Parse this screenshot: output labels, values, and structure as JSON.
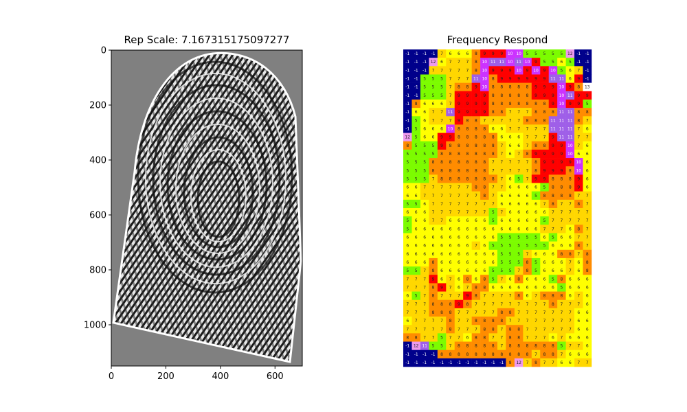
{
  "chart_data": [
    {
      "type": "image",
      "title": "Rep Scale: 7.167315175097277",
      "xlabel": "",
      "ylabel": "",
      "xlim": [
        0,
        700
      ],
      "ylim": [
        1150,
        0
      ],
      "x_ticks": [
        0,
        200,
        400,
        600
      ],
      "y_ticks": [
        0,
        200,
        400,
        600,
        800,
        1000
      ],
      "image_content": "enhanced grayscale fingerprint ridge image on gray background"
    },
    {
      "type": "heatmap",
      "title": "Frequency Respond",
      "xlabel": "",
      "ylabel": "",
      "axes_visible": false,
      "colors": {
        "-1": "#00008b",
        "5": "#7cfc00",
        "6": "#ffff00",
        "7": "#ffd700",
        "8": "#ff8c00",
        "9": "#ff0000",
        "10": "#cc33ff",
        "11": "#9f5fe8",
        "12": "#ee99ee",
        "13": "#ffffff"
      },
      "rows": [
        [
          -1,
          -1,
          -1,
          -1,
          7,
          6,
          6,
          6,
          8,
          9,
          9,
          9,
          10,
          10,
          5,
          5,
          5,
          5,
          5,
          12,
          -1,
          -1
        ],
        [
          -1,
          -1,
          -1,
          12,
          6,
          7,
          7,
          7,
          8,
          10,
          11,
          11,
          10,
          11,
          10,
          9,
          5,
          5,
          6,
          5,
          -1,
          -1
        ],
        [
          -1,
          -1,
          -1,
          7,
          7,
          7,
          7,
          7,
          8,
          10,
          9,
          9,
          9,
          10,
          9,
          10,
          9,
          10,
          5,
          6,
          7,
          -1
        ],
        [
          -1,
          -1,
          5,
          5,
          5,
          7,
          7,
          7,
          11,
          10,
          8,
          9,
          9,
          9,
          9,
          9,
          9,
          11,
          11,
          6,
          9,
          -1
        ],
        [
          -1,
          -1,
          5,
          5,
          5,
          7,
          8,
          8,
          9,
          10,
          8,
          8,
          8,
          8,
          8,
          9,
          9,
          9,
          10,
          9,
          8,
          13
        ],
        [
          -1,
          -1,
          5,
          5,
          5,
          7,
          9,
          9,
          9,
          9,
          8,
          8,
          8,
          8,
          8,
          9,
          9,
          9,
          10,
          11,
          9,
          9
        ],
        [
          -1,
          8,
          6,
          6,
          6,
          7,
          9,
          9,
          9,
          9,
          8,
          8,
          8,
          8,
          8,
          8,
          8,
          9,
          10,
          9,
          9,
          5
        ],
        [
          -1,
          6,
          6,
          7,
          7,
          11,
          9,
          9,
          9,
          9,
          8,
          8,
          7,
          7,
          7,
          8,
          8,
          8,
          11,
          11,
          8,
          8
        ],
        [
          -1,
          5,
          6,
          7,
          7,
          7,
          9,
          8,
          8,
          7,
          7,
          7,
          7,
          7,
          8,
          8,
          8,
          11,
          11,
          11,
          8,
          7
        ],
        [
          -1,
          5,
          6,
          6,
          6,
          10,
          8,
          8,
          8,
          8,
          6,
          6,
          7,
          7,
          7,
          7,
          7,
          11,
          11,
          11,
          7,
          6
        ],
        [
          12,
          5,
          6,
          6,
          9,
          9,
          8,
          8,
          8,
          8,
          8,
          6,
          6,
          6,
          7,
          7,
          7,
          9,
          11,
          11,
          7,
          7
        ],
        [
          8,
          5,
          5,
          5,
          9,
          8,
          8,
          8,
          8,
          8,
          8,
          7,
          6,
          6,
          7,
          8,
          8,
          9,
          9,
          10,
          7,
          6
        ],
        [
          5,
          5,
          5,
          5,
          8,
          8,
          8,
          8,
          8,
          8,
          8,
          7,
          6,
          7,
          8,
          9,
          9,
          9,
          9,
          10,
          6,
          6
        ],
        [
          5,
          5,
          5,
          8,
          8,
          8,
          8,
          8,
          8,
          8,
          7,
          7,
          7,
          7,
          7,
          8,
          9,
          9,
          9,
          9,
          10,
          6
        ],
        [
          5,
          5,
          5,
          8,
          8,
          8,
          8,
          8,
          8,
          8,
          7,
          7,
          7,
          7,
          7,
          8,
          9,
          9,
          9,
          8,
          10,
          6
        ],
        [
          5,
          5,
          5,
          7,
          8,
          8,
          8,
          8,
          8,
          8,
          8,
          7,
          6,
          5,
          7,
          9,
          9,
          8,
          8,
          8,
          9,
          6
        ],
        [
          6,
          6,
          7,
          7,
          7,
          7,
          7,
          7,
          8,
          8,
          7,
          7,
          6,
          6,
          6,
          6,
          5,
          8,
          8,
          8,
          9,
          6
        ],
        [
          6,
          6,
          7,
          7,
          7,
          7,
          7,
          7,
          7,
          8,
          7,
          6,
          6,
          6,
          6,
          5,
          8,
          8,
          8,
          8,
          7,
          7
        ],
        [
          5,
          5,
          6,
          7,
          7,
          7,
          7,
          7,
          7,
          7,
          7,
          6,
          6,
          6,
          6,
          6,
          7,
          8,
          7,
          7,
          8,
          7
        ],
        [
          6,
          6,
          6,
          7,
          7,
          7,
          7,
          7,
          7,
          7,
          5,
          7,
          6,
          6,
          6,
          6,
          6,
          7,
          7,
          7,
          7,
          7
        ],
        [
          5,
          6,
          6,
          7,
          7,
          6,
          6,
          6,
          6,
          6,
          5,
          6,
          6,
          6,
          6,
          6,
          5,
          7,
          7,
          7,
          7,
          7
        ],
        [
          5,
          6,
          6,
          6,
          6,
          6,
          6,
          6,
          6,
          6,
          6,
          6,
          6,
          6,
          6,
          6,
          7,
          7,
          7,
          6,
          8,
          7
        ],
        [
          6,
          6,
          6,
          6,
          6,
          6,
          6,
          6,
          6,
          6,
          6,
          5,
          5,
          5,
          5,
          5,
          6,
          5,
          6,
          6,
          7,
          7
        ],
        [
          6,
          6,
          6,
          6,
          6,
          6,
          6,
          6,
          7,
          6,
          5,
          5,
          5,
          5,
          5,
          5,
          5,
          6,
          6,
          6,
          8,
          7
        ],
        [
          6,
          6,
          6,
          6,
          6,
          6,
          6,
          6,
          6,
          6,
          6,
          5,
          5,
          5,
          7,
          6,
          6,
          6,
          8,
          8,
          7,
          8
        ],
        [
          6,
          6,
          6,
          8,
          6,
          6,
          6,
          6,
          6,
          6,
          6,
          5,
          5,
          5,
          8,
          5,
          6,
          6,
          6,
          7,
          6,
          8
        ],
        [
          5,
          5,
          7,
          8,
          6,
          6,
          6,
          6,
          6,
          6,
          5,
          5,
          5,
          7,
          8,
          5,
          6,
          6,
          6,
          7,
          6,
          8
        ],
        [
          7,
          7,
          7,
          9,
          6,
          7,
          6,
          8,
          6,
          8,
          5,
          7,
          6,
          8,
          6,
          6,
          6,
          5,
          8,
          6,
          6,
          6
        ],
        [
          7,
          7,
          7,
          8,
          9,
          7,
          6,
          7,
          8,
          8,
          6,
          6,
          6,
          6,
          6,
          6,
          6,
          6,
          5,
          6,
          6,
          6
        ],
        [
          6,
          5,
          7,
          8,
          7,
          7,
          7,
          9,
          8,
          7,
          7,
          7,
          7,
          8,
          6,
          7,
          8,
          8,
          8,
          6,
          7,
          6
        ],
        [
          7,
          7,
          7,
          8,
          8,
          8,
          9,
          8,
          7,
          7,
          7,
          7,
          7,
          7,
          7,
          7,
          7,
          8,
          7,
          7,
          7,
          6
        ],
        [
          7,
          7,
          7,
          8,
          8,
          8,
          7,
          7,
          7,
          7,
          7,
          8,
          8,
          7,
          7,
          7,
          7,
          7,
          7,
          7,
          6,
          6
        ],
        [
          6,
          7,
          7,
          7,
          7,
          8,
          7,
          7,
          8,
          8,
          8,
          8,
          7,
          7,
          7,
          7,
          7,
          7,
          7,
          7,
          6,
          6
        ],
        [
          7,
          7,
          7,
          7,
          7,
          8,
          7,
          7,
          7,
          8,
          8,
          7,
          8,
          8,
          7,
          7,
          7,
          7,
          7,
          7,
          6,
          6
        ],
        [
          8,
          8,
          7,
          7,
          5,
          7,
          7,
          6,
          8,
          8,
          7,
          7,
          8,
          8,
          7,
          7,
          7,
          6,
          7,
          6,
          6,
          6
        ],
        [
          -1,
          12,
          11,
          5,
          5,
          7,
          8,
          8,
          8,
          8,
          8,
          7,
          8,
          8,
          8,
          8,
          8,
          8,
          5,
          7,
          7,
          6
        ],
        [
          -1,
          -1,
          -1,
          -1,
          8,
          8,
          8,
          8,
          8,
          8,
          8,
          8,
          8,
          8,
          8,
          7,
          8,
          8,
          7,
          6,
          6,
          6
        ],
        [
          -1,
          -1,
          -1,
          -1,
          -1,
          -1,
          -1,
          -1,
          -1,
          -1,
          -1,
          -1,
          8,
          12,
          7,
          8,
          7,
          7,
          6,
          6,
          7,
          7
        ]
      ]
    }
  ]
}
